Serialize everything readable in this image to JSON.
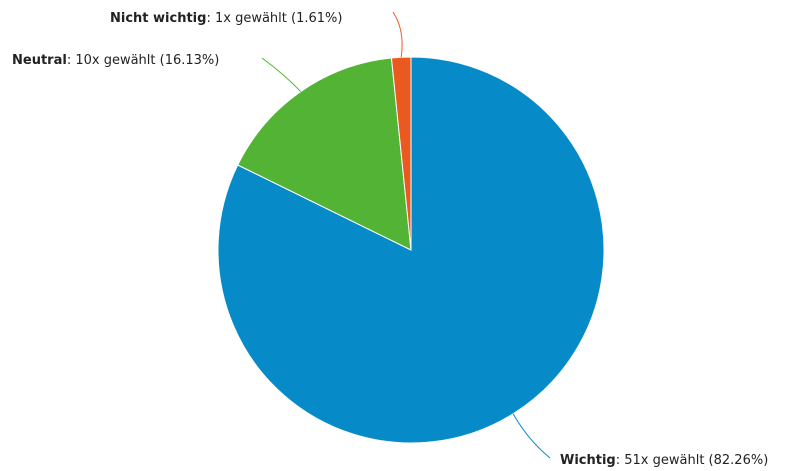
{
  "chart_data": {
    "type": "pie",
    "slices": [
      {
        "label": "Wichtig",
        "count": 51,
        "percent": 82.26,
        "label_detail": "51x gewählt (82.26%)",
        "color": "#078bc8"
      },
      {
        "label": "Neutral",
        "count": 10,
        "percent": 16.13,
        "label_detail": "10x gewählt (16.13%)",
        "color": "#52b335"
      },
      {
        "label": "Nicht wichtig",
        "count": 1,
        "percent": 1.61,
        "label_detail": "1x gewählt (1.61%)",
        "color": "#ea5a20"
      }
    ]
  }
}
